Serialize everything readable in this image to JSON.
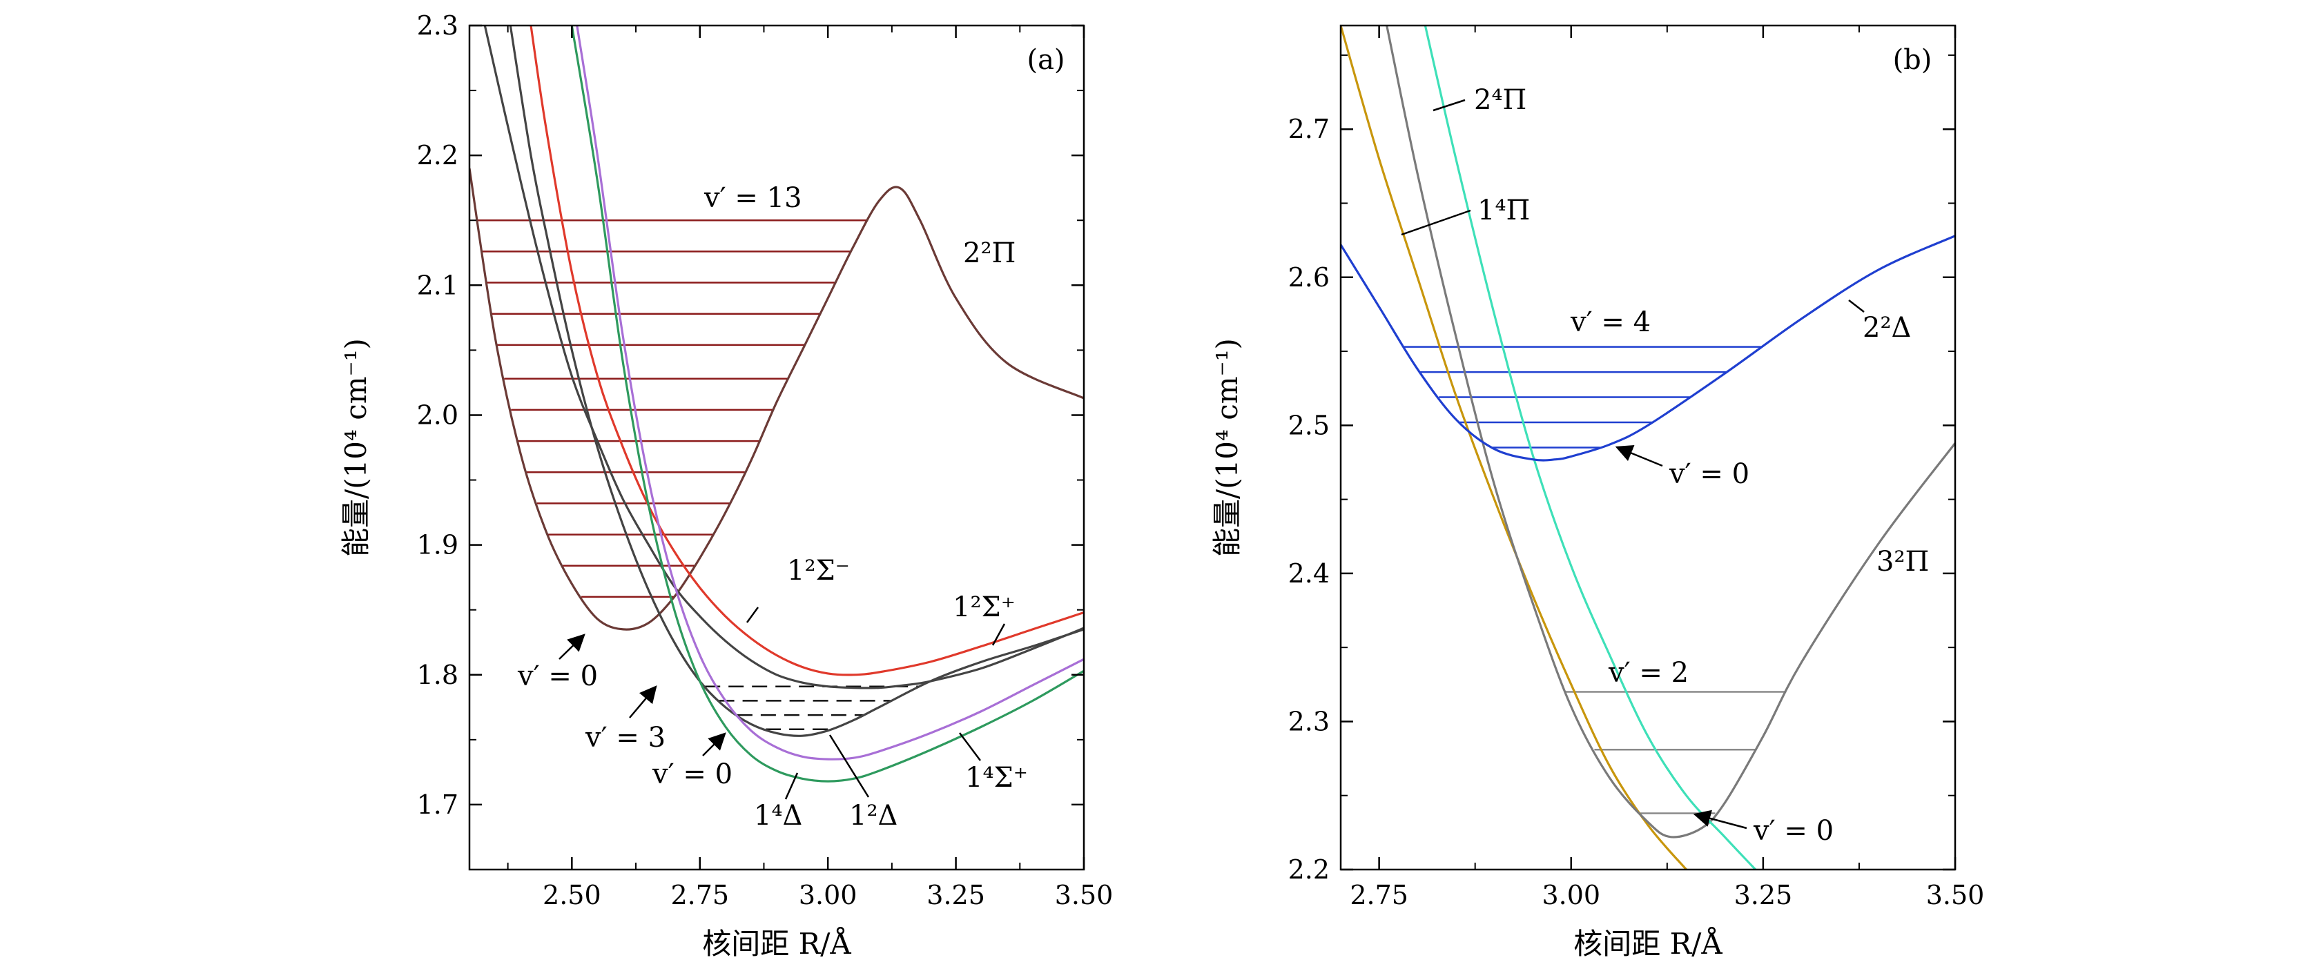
{
  "chart_data": [
    {
      "type": "line",
      "panel_label": "(a)",
      "xlabel": "核间距 R/Å",
      "ylabel": "能量/(10⁴ cm⁻¹)",
      "xlim": [
        2.3,
        3.5
      ],
      "ylim": [
        1.65,
        2.3
      ],
      "xticks": [
        2.5,
        2.75,
        3.0,
        3.25,
        3.5
      ],
      "xtick_labels": [
        "2.50",
        "2.75",
        "3.00",
        "3.25",
        "3.50"
      ],
      "yticks": [
        1.7,
        1.8,
        1.9,
        2.0,
        2.1,
        2.2,
        2.3
      ],
      "ytick_labels": [
        "1.7",
        "1.8",
        "1.9",
        "2.0",
        "2.1",
        "2.2",
        "2.3"
      ],
      "series": [
        {
          "name": "2²Π",
          "color": "#6b3a36",
          "x": [
            2.3,
            2.35,
            2.4,
            2.45,
            2.5,
            2.55,
            2.6,
            2.65,
            2.7,
            2.75,
            2.8,
            2.85,
            2.9,
            2.95,
            3.0,
            3.05,
            3.1,
            3.14,
            3.18,
            3.25,
            3.35,
            3.5
          ],
          "y": [
            2.19,
            2.06,
            1.97,
            1.91,
            1.87,
            1.843,
            1.835,
            1.84,
            1.86,
            1.89,
            1.925,
            1.965,
            2.01,
            2.05,
            2.09,
            2.13,
            2.165,
            2.175,
            2.15,
            2.09,
            2.04,
            2.013
          ]
        },
        {
          "name": "1²Σ⁻",
          "color": "#e0392b",
          "x": [
            2.42,
            2.45,
            2.5,
            2.55,
            2.6,
            2.65,
            2.7,
            2.75,
            2.8,
            2.85,
            2.9,
            2.95,
            3.0,
            3.05,
            3.1,
            3.2,
            3.3,
            3.4,
            3.5
          ],
          "y": [
            2.3,
            2.22,
            2.11,
            2.03,
            1.975,
            1.93,
            1.895,
            1.867,
            1.845,
            1.828,
            1.815,
            1.806,
            1.801,
            1.8,
            1.802,
            1.81,
            1.822,
            1.835,
            1.848
          ]
        },
        {
          "name": "1²Σ⁺",
          "color": "#444444",
          "x": [
            2.33,
            2.4,
            2.45,
            2.5,
            2.55,
            2.6,
            2.65,
            2.7,
            2.75,
            2.8,
            2.85,
            2.9,
            2.95,
            3.0,
            3.05,
            3.1,
            3.15,
            3.2,
            3.3,
            3.4,
            3.5
          ],
          "y": [
            2.3,
            2.18,
            2.1,
            2.03,
            1.98,
            1.935,
            1.9,
            1.868,
            1.845,
            1.826,
            1.811,
            1.8,
            1.794,
            1.791,
            1.79,
            1.79,
            1.792,
            1.795,
            1.805,
            1.82,
            1.836
          ]
        },
        {
          "name": "1²Δ",
          "color": "#444444",
          "x": [
            2.38,
            2.42,
            2.45,
            2.5,
            2.55,
            2.6,
            2.65,
            2.7,
            2.75,
            2.8,
            2.85,
            2.9,
            2.95,
            3.0,
            3.05,
            3.1,
            3.2,
            3.3,
            3.4,
            3.5
          ],
          "y": [
            2.3,
            2.2,
            2.14,
            2.05,
            1.975,
            1.915,
            1.865,
            1.825,
            1.795,
            1.775,
            1.762,
            1.755,
            1.753,
            1.757,
            1.765,
            1.775,
            1.795,
            1.81,
            1.822,
            1.835
          ]
        },
        {
          "name": "1⁴Σ⁺",
          "color": "#a86fd6",
          "x": [
            2.51,
            2.55,
            2.6,
            2.65,
            2.7,
            2.75,
            2.8,
            2.85,
            2.9,
            2.95,
            3.0,
            3.05,
            3.1,
            3.2,
            3.3,
            3.4,
            3.5
          ],
          "y": [
            2.3,
            2.2,
            2.06,
            1.95,
            1.87,
            1.815,
            1.78,
            1.757,
            1.744,
            1.737,
            1.735,
            1.736,
            1.741,
            1.755,
            1.772,
            1.792,
            1.812
          ]
        },
        {
          "name": "1⁴Δ",
          "color": "#2e9a5e",
          "x": [
            2.5,
            2.55,
            2.6,
            2.65,
            2.7,
            2.75,
            2.8,
            2.85,
            2.9,
            2.95,
            3.0,
            3.05,
            3.1,
            3.2,
            3.3,
            3.4,
            3.5
          ],
          "y": [
            2.3,
            2.18,
            2.04,
            1.93,
            1.85,
            1.795,
            1.76,
            1.738,
            1.726,
            1.72,
            1.718,
            1.72,
            1.726,
            1.742,
            1.76,
            1.78,
            1.803
          ]
        }
      ],
      "vibrational_levels": [
        {
          "state": "2²Π",
          "style": "solid",
          "color": "#8b1a1a",
          "energies": [
            1.835,
            1.86,
            1.884,
            1.908,
            1.932,
            1.956,
            1.98,
            2.004,
            2.028,
            2.054,
            2.078,
            2.102,
            2.126,
            2.15
          ]
        },
        {
          "state": "1²Δ",
          "style": "dashed",
          "color": "#111111",
          "energies": [
            1.758,
            1.769,
            1.78,
            1.791
          ]
        }
      ],
      "annotations": [
        "v′ = 13",
        "2²Π",
        "1²Σ⁻",
        "1²Σ⁺",
        "v′ = 0",
        "v′ = 3",
        "v′ = 0",
        "1⁴Δ",
        "1²Δ",
        "1⁴Σ⁺"
      ]
    },
    {
      "type": "line",
      "panel_label": "(b)",
      "xlabel": "核间距 R/Å",
      "ylabel": "能量/(10⁴ cm⁻¹)",
      "xlim": [
        2.7,
        3.5
      ],
      "ylim": [
        2.2,
        2.77
      ],
      "xticks": [
        2.75,
        3.0,
        3.25,
        3.5
      ],
      "xtick_labels": [
        "2.75",
        "3.00",
        "3.25",
        "3.50"
      ],
      "yticks": [
        2.2,
        2.3,
        2.4,
        2.5,
        2.6,
        2.7
      ],
      "ytick_labels": [
        "2.2",
        "2.3",
        "2.4",
        "2.5",
        "2.6",
        "2.7"
      ],
      "series": [
        {
          "name": "1⁴Π",
          "color": "#c8960c",
          "x": [
            2.7,
            2.75,
            2.8,
            2.85,
            2.9,
            2.95,
            3.0,
            3.05,
            3.1,
            3.15
          ],
          "y": [
            2.77,
            2.68,
            2.6,
            2.52,
            2.45,
            2.385,
            2.325,
            2.27,
            2.23,
            2.2
          ]
        },
        {
          "name": "3²Π",
          "color": "#7a7a7a",
          "x": [
            2.76,
            2.8,
            2.85,
            2.9,
            2.95,
            3.0,
            3.05,
            3.1,
            3.13,
            3.17,
            3.2,
            3.25,
            3.3,
            3.4,
            3.5
          ],
          "y": [
            2.77,
            2.67,
            2.56,
            2.46,
            2.38,
            2.31,
            2.262,
            2.232,
            2.222,
            2.228,
            2.245,
            2.29,
            2.34,
            2.42,
            2.488
          ]
        },
        {
          "name": "2⁴Π",
          "color": "#3ee0b8",
          "x": [
            2.81,
            2.85,
            2.9,
            2.95,
            3.0,
            3.05,
            3.1,
            3.15,
            3.2,
            3.24
          ],
          "y": [
            2.77,
            2.68,
            2.575,
            2.48,
            2.405,
            2.345,
            2.29,
            2.25,
            2.222,
            2.2
          ]
        },
        {
          "name": "2²Δ",
          "color": "#1f3fd0",
          "x": [
            2.7,
            2.75,
            2.8,
            2.85,
            2.9,
            2.95,
            2.98,
            3.0,
            3.05,
            3.1,
            3.2,
            3.3,
            3.4,
            3.5
          ],
          "y": [
            2.622,
            2.58,
            2.538,
            2.504,
            2.484,
            2.477,
            2.477,
            2.479,
            2.487,
            2.5,
            2.535,
            2.572,
            2.605,
            2.628
          ]
        }
      ],
      "vibrational_levels": [
        {
          "state": "2²Δ",
          "style": "solid",
          "color": "#1f3fd0",
          "energies": [
            2.485,
            2.502,
            2.519,
            2.536,
            2.553
          ]
        },
        {
          "state": "3²Π",
          "style": "solid",
          "color": "#8a8a8a",
          "energies": [
            2.238,
            2.281,
            2.32
          ]
        }
      ],
      "annotations": [
        "2⁴Π",
        "1⁴Π",
        "v′ = 4",
        "2²Δ",
        "v′ = 0",
        "3²Π",
        "v′ = 2",
        "v′ = 0"
      ]
    }
  ]
}
